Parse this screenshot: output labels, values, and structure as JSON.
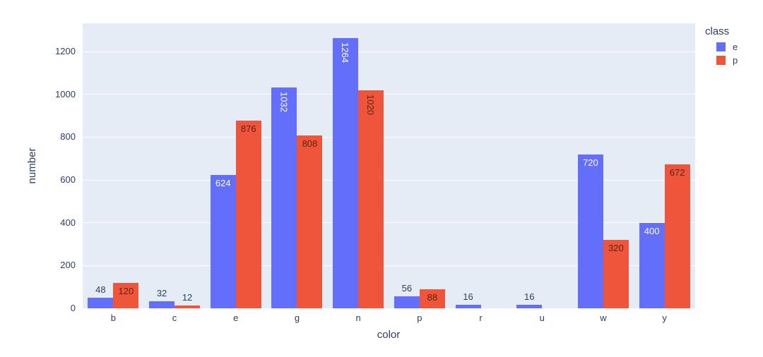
{
  "chart_data": {
    "type": "bar",
    "title": "",
    "xlabel": "color",
    "ylabel": "number",
    "legend_title": "class",
    "legend_position": "top-right",
    "grid": true,
    "categories": [
      "b",
      "c",
      "e",
      "g",
      "n",
      "p",
      "r",
      "u",
      "w",
      "y"
    ],
    "series": [
      {
        "name": "e",
        "color": "#636EFA",
        "values": [
          48,
          32,
          624,
          1032,
          1264,
          56,
          16,
          16,
          720,
          400
        ],
        "label_placement": [
          "out",
          "out",
          "in",
          "in-v",
          "in-v",
          "out",
          "out",
          "out",
          "in",
          "in"
        ],
        "inside_text_color": "#ffffff"
      },
      {
        "name": "p",
        "color": "#EF553B",
        "values": [
          120,
          12,
          876,
          808,
          1020,
          88,
          0,
          0,
          320,
          672
        ],
        "label_placement": [
          "in",
          "out",
          "in",
          "in",
          "in-v",
          "in",
          null,
          null,
          "in",
          "in"
        ],
        "inside_text_color": "#5e2410"
      }
    ],
    "ylim": [
      0,
      1332
    ],
    "yticks": [
      0,
      200,
      400,
      600,
      800,
      1000,
      1200
    ],
    "colors": {
      "plot_background": "#E5ECF6",
      "gridline": "#ffffff",
      "tick_text": "#2a3f5f",
      "outside_label_text": "#2a3f5f"
    }
  }
}
